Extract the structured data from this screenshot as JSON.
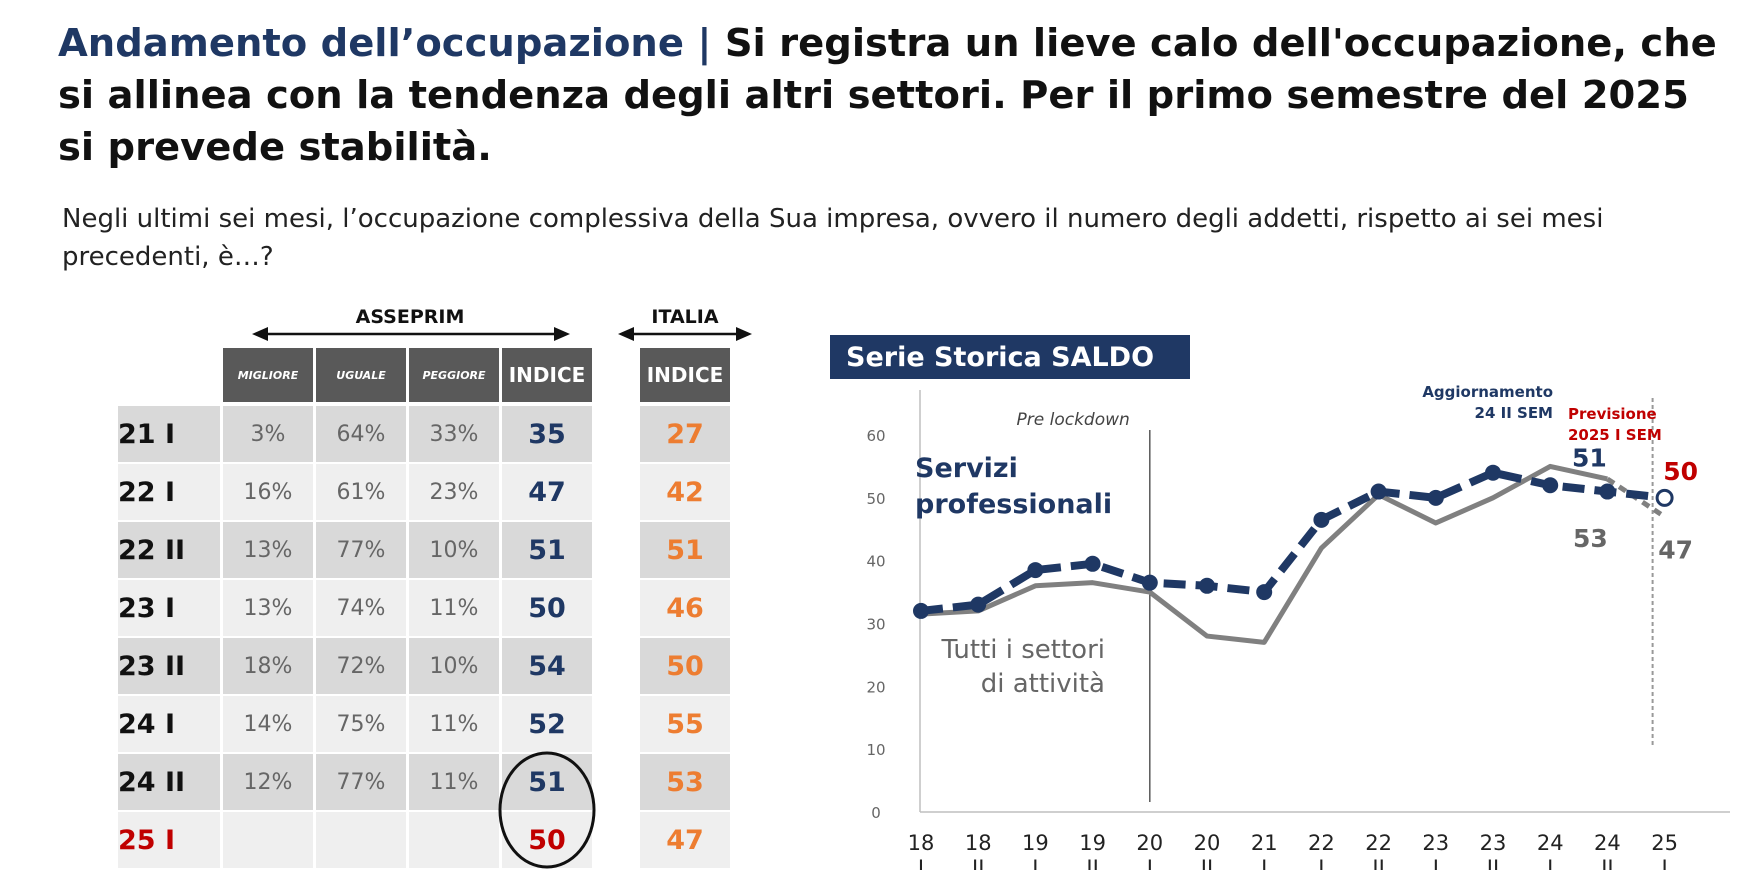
{
  "header": {
    "title_part1": "Andamento dell’occupazione",
    "title_sep": " | ",
    "title_part2": "Si registra un lieve calo dell'occupazione, che si allinea con la tendenza degli altri settori. Per il primo semestre del 2025 si prevede stabilità.",
    "question": "Negli ultimi sei mesi, l’occupazione complessiva della Sua impresa, ovvero il numero degli addetti, rispetto ai sei mesi precedenti, è…?"
  },
  "table": {
    "group_asseprim": "ASSEPRIM",
    "group_italia": "ITALIA",
    "columns": [
      "MIGLIORE",
      "UGUALE",
      "PEGGIORE",
      "INDICE"
    ],
    "italia_column": "INDICE",
    "rows": [
      {
        "label": "21 I",
        "migliore": "3%",
        "uguale": "64%",
        "peggiore": "33%",
        "indice": "35",
        "italia": "27"
      },
      {
        "label": "22 I",
        "migliore": "16%",
        "uguale": "61%",
        "peggiore": "23%",
        "indice": "47",
        "italia": "42"
      },
      {
        "label": "22 II",
        "migliore": "13%",
        "uguale": "77%",
        "peggiore": "10%",
        "indice": "51",
        "italia": "51"
      },
      {
        "label": "23 I",
        "migliore": "13%",
        "uguale": "74%",
        "peggiore": "11%",
        "indice": "50",
        "italia": "46"
      },
      {
        "label": "23 II",
        "migliore": "18%",
        "uguale": "72%",
        "peggiore": "10%",
        "indice": "54",
        "italia": "50"
      },
      {
        "label": "24 I",
        "migliore": "14%",
        "uguale": "75%",
        "peggiore": "11%",
        "indice": "52",
        "italia": "55"
      },
      {
        "label": "24 II",
        "migliore": "12%",
        "uguale": "77%",
        "peggiore": "11%",
        "indice": "51",
        "italia": "53"
      },
      {
        "label": "25 I",
        "migliore": "",
        "uguale": "",
        "peggiore": "",
        "indice": "50",
        "italia": "47"
      }
    ]
  },
  "chart_data": {
    "type": "line",
    "title": "Serie Storica SALDO",
    "x": [
      "18 I",
      "18 II",
      "19 I",
      "19 II",
      "20 I",
      "20 II",
      "21 I",
      "22 I",
      "22 II",
      "23 I",
      "23 II",
      "24 I",
      "24 II",
      "25 I"
    ],
    "x_top": [
      "18",
      "18",
      "19",
      "19",
      "20",
      "20",
      "21",
      "22",
      "22",
      "23",
      "23",
      "24",
      "24",
      "25"
    ],
    "x_bottom": [
      "I",
      "II",
      "I",
      "II",
      "I",
      "II",
      "I",
      "I",
      "II",
      "I",
      "II",
      "I",
      "II",
      "I"
    ],
    "ylim": [
      0,
      60
    ],
    "yticks": [
      "0",
      "10",
      "20",
      "30",
      "40",
      "50",
      "60"
    ],
    "series": [
      {
        "name": "Servizi professionali",
        "color": "#1f3864",
        "style": "dashed-markers",
        "values": [
          32,
          33,
          38.5,
          39.5,
          36.5,
          36,
          35,
          46.5,
          51,
          50,
          54,
          52,
          51,
          50
        ]
      },
      {
        "name": "Tutti i settori di attività",
        "color": "#808080",
        "style": "solid",
        "values": [
          31.5,
          32,
          36,
          36.5,
          35,
          28,
          27,
          42,
          50.5,
          46,
          50,
          55,
          53,
          47
        ]
      }
    ],
    "annotations": {
      "pre_lockdown": "Pre lockdown",
      "aggiornamento": "Aggiornamento",
      "aggiornamento_sem": "24 II SEM",
      "previsione": "Previsione",
      "previsione_sem": "2025 I SEM",
      "label_51": "51",
      "label_50": "50",
      "label_53": "53",
      "label_47": "47",
      "servizi_line1": "Servizi",
      "servizi_line2": "professionali",
      "tutti_line1": "Tutti i settori",
      "tutti_line2": "di attività"
    }
  }
}
